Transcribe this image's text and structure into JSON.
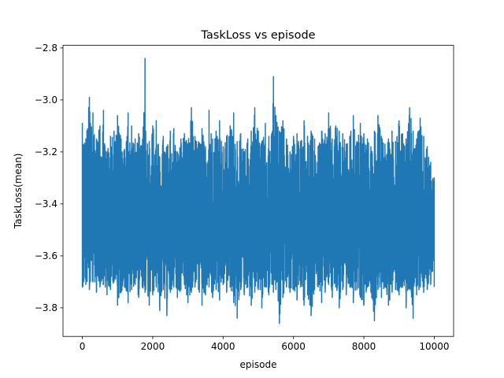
{
  "chart_data": {
    "type": "line",
    "title": "TaskLoss vs episode",
    "xlabel": "episode",
    "ylabel": "TaskLoss(mean)",
    "xlim": [
      -550,
      10550
    ],
    "ylim": [
      -3.91,
      -2.79
    ],
    "xticks": [
      0,
      2000,
      4000,
      6000,
      8000,
      10000
    ],
    "xtick_labels": [
      "0",
      "2000",
      "4000",
      "6000",
      "8000",
      "10000"
    ],
    "yticks": [
      -3.8,
      -3.6,
      -3.4,
      -3.2,
      -3.0,
      -2.8
    ],
    "ytick_labels": [
      "−3.8",
      "−3.6",
      "−3.4",
      "−3.2",
      "−3.0",
      "−2.8"
    ],
    "grid": false,
    "legend": "none",
    "series": [
      {
        "color": "#1f77b4",
        "n_points": 10000,
        "x_range": [
          0,
          10000
        ],
        "y_range": [
          -3.86,
          -2.84
        ],
        "x": [
          0,
          100,
          200,
          300,
          400,
          500,
          600,
          700,
          800,
          900,
          1000,
          1100,
          1200,
          1300,
          1400,
          1500,
          1600,
          1700,
          1780,
          1800,
          1900,
          2000,
          2100,
          2200,
          2300,
          2400,
          2500,
          2600,
          2700,
          2800,
          2900,
          3000,
          3100,
          3200,
          3300,
          3400,
          3500,
          3600,
          3700,
          3800,
          3900,
          4000,
          4100,
          4200,
          4300,
          4400,
          4500,
          4600,
          4700,
          4800,
          4900,
          5000,
          5100,
          5200,
          5300,
          5400,
          5430,
          5500,
          5600,
          5700,
          5800,
          5900,
          6000,
          6100,
          6200,
          6300,
          6400,
          6500,
          6600,
          6700,
          6800,
          6900,
          7000,
          7100,
          7200,
          7300,
          7400,
          7500,
          7600,
          7700,
          7800,
          7900,
          8000,
          8100,
          8200,
          8300,
          8400,
          8500,
          8600,
          8700,
          8800,
          8900,
          9000,
          9100,
          9200,
          9300,
          9400,
          9500,
          9600,
          9700,
          9800,
          9900,
          10000
        ],
        "y_min": [
          -3.72,
          -3.71,
          -3.73,
          -3.7,
          -3.74,
          -3.72,
          -3.71,
          -3.75,
          -3.73,
          -3.7,
          -3.79,
          -3.74,
          -3.72,
          -3.78,
          -3.73,
          -3.71,
          -3.76,
          -3.72,
          -3.74,
          -3.73,
          -3.79,
          -3.75,
          -3.72,
          -3.81,
          -3.73,
          -3.83,
          -3.74,
          -3.72,
          -3.76,
          -3.73,
          -3.71,
          -3.78,
          -3.74,
          -3.72,
          -3.73,
          -3.79,
          -3.75,
          -3.72,
          -3.76,
          -3.73,
          -3.77,
          -3.71,
          -3.74,
          -3.72,
          -3.78,
          -3.84,
          -3.73,
          -3.75,
          -3.72,
          -3.79,
          -3.74,
          -3.73,
          -3.8,
          -3.72,
          -3.75,
          -3.71,
          -3.74,
          -3.73,
          -3.86,
          -3.76,
          -3.72,
          -3.74,
          -3.73,
          -3.77,
          -3.72,
          -3.79,
          -3.75,
          -3.83,
          -3.73,
          -3.72,
          -3.78,
          -3.74,
          -3.71,
          -3.76,
          -3.72,
          -3.8,
          -3.73,
          -3.75,
          -3.72,
          -3.78,
          -3.73,
          -3.76,
          -3.79,
          -3.72,
          -3.74,
          -3.85,
          -3.73,
          -3.76,
          -3.72,
          -3.79,
          -3.74,
          -3.73,
          -3.75,
          -3.72,
          -3.8,
          -3.73,
          -3.84,
          -3.75,
          -3.72,
          -3.74,
          -3.73,
          -3.71,
          -3.72
        ],
        "y_max": [
          -3.09,
          -3.15,
          -2.99,
          -3.05,
          -3.15,
          -3.1,
          -3.04,
          -3.2,
          -3.14,
          -3.12,
          -3.06,
          -3.15,
          -3.19,
          -3.05,
          -3.1,
          -3.15,
          -3.13,
          -3.18,
          -2.84,
          -3.12,
          -3.16,
          -3.1,
          -3.08,
          -3.22,
          -3.14,
          -3.18,
          -3.12,
          -3.11,
          -3.2,
          -3.15,
          -3.13,
          -3.17,
          -3.03,
          -3.14,
          -3.16,
          -3.11,
          -3.18,
          -3.04,
          -3.15,
          -3.12,
          -3.08,
          -3.18,
          -3.14,
          -3.1,
          -3.05,
          -3.16,
          -3.13,
          -3.2,
          -3.15,
          -3.12,
          -3.03,
          -3.12,
          -3.16,
          -3.09,
          -3.14,
          -3.12,
          -2.91,
          -3.06,
          -3.12,
          -3.08,
          -3.15,
          -3.2,
          -3.14,
          -3.13,
          -3.16,
          -3.08,
          -3.14,
          -3.12,
          -3.15,
          -3.18,
          -3.12,
          -3.13,
          -3.05,
          -3.15,
          -3.1,
          -3.12,
          -3.13,
          -3.17,
          -3.14,
          -3.06,
          -3.16,
          -3.09,
          -3.13,
          -3.15,
          -3.18,
          -3.12,
          -3.06,
          -3.14,
          -3.17,
          -3.15,
          -3.12,
          -3.16,
          -3.08,
          -3.13,
          -3.15,
          -3.03,
          -3.12,
          -3.15,
          -3.07,
          -3.14,
          -3.18,
          -3.24,
          -3.3
        ]
      }
    ]
  }
}
